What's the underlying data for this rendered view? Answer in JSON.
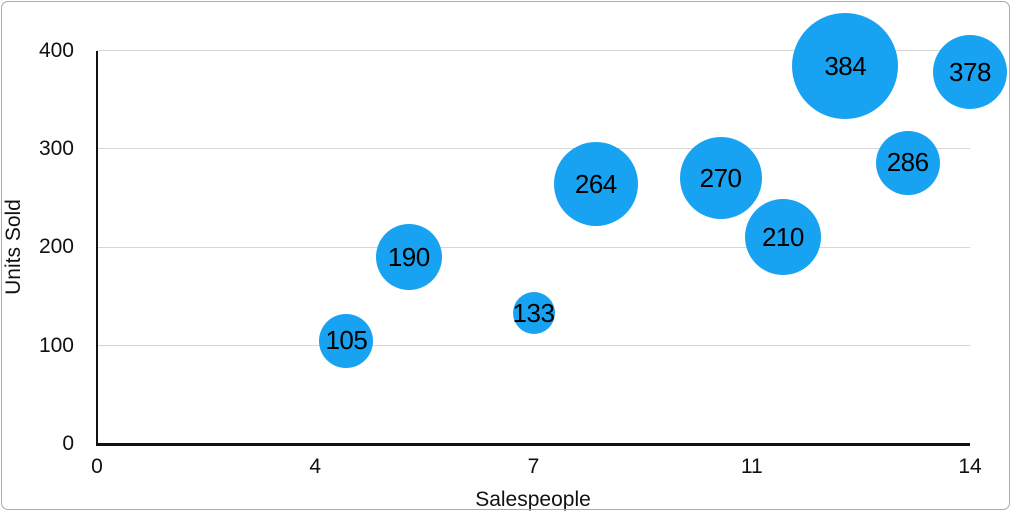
{
  "figure": {
    "background_color": "#ffffff",
    "frame_border_color": "#ababab"
  },
  "colors": {
    "bubble_fill": "#18a2f2",
    "bubble_label_text": "#000000",
    "gridline": "#d6d6d6",
    "axis_line": "#111111",
    "tick_text": "#111111"
  },
  "chart_data": {
    "type": "bubble",
    "title": "",
    "xlabel": "Salespeople",
    "ylabel": "Units Sold",
    "xlim": [
      0,
      14
    ],
    "ylim": [
      0,
      400
    ],
    "grid": "horizontal gridlines on, vertical off",
    "legend_position": "none",
    "xticks": [
      {
        "pos": 0,
        "label": "0"
      },
      {
        "pos": 3.5,
        "label": "4"
      },
      {
        "pos": 7,
        "label": "7"
      },
      {
        "pos": 10.5,
        "label": "11"
      },
      {
        "pos": 14,
        "label": "14"
      }
    ],
    "yticks": [
      {
        "pos": 0,
        "label": "0"
      },
      {
        "pos": 100,
        "label": "100"
      },
      {
        "pos": 200,
        "label": "200"
      },
      {
        "pos": 300,
        "label": "300"
      },
      {
        "pos": 400,
        "label": "400"
      }
    ],
    "points": [
      {
        "x": 4,
        "y": 105,
        "label": "105",
        "radius_px": 27
      },
      {
        "x": 5,
        "y": 190,
        "label": "190",
        "radius_px": 33
      },
      {
        "x": 7,
        "y": 133,
        "label": "133",
        "radius_px": 21
      },
      {
        "x": 8,
        "y": 264,
        "label": "264",
        "radius_px": 42
      },
      {
        "x": 10,
        "y": 270,
        "label": "270",
        "radius_px": 41
      },
      {
        "x": 11,
        "y": 210,
        "label": "210",
        "radius_px": 38
      },
      {
        "x": 12,
        "y": 384,
        "label": "384",
        "radius_px": 53
      },
      {
        "x": 13,
        "y": 286,
        "label": "286",
        "radius_px": 32
      },
      {
        "x": 14,
        "y": 378,
        "label": "378",
        "radius_px": 37
      }
    ]
  }
}
